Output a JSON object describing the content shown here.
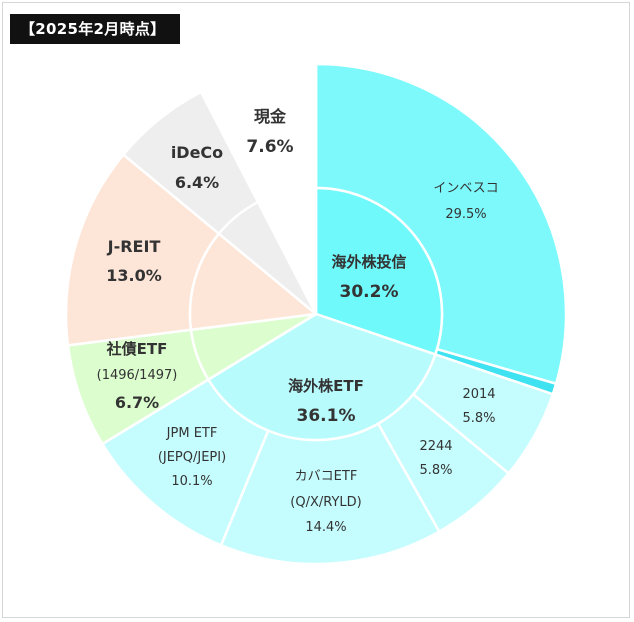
{
  "title": "【2025年2月時点】",
  "colors": {
    "overseas_fund": "#7df9fc",
    "overseas_fund_inner": "#6ff9fb",
    "overseas_etf": "#c5fcfd",
    "overseas_etf_inner": "#b8fbfd",
    "thin_sliver": "#3ee2f0",
    "bond_etf": "#dcfdce",
    "jreit": "#fde6d8",
    "ideco": "#eeeeee",
    "cash": "#ffffff",
    "separator": "#ffffff"
  },
  "chart_data": {
    "type": "pie",
    "variant": "nested-donut",
    "title": "【2025年2月時点】",
    "inner_ring": [
      {
        "label": "海外株投信",
        "value": 30.2,
        "value_text": "30.2%",
        "color": "#6ff9fb"
      },
      {
        "label": "海外株ETF",
        "value": 36.1,
        "value_text": "36.1%",
        "color": "#b8fbfd"
      }
    ],
    "slices": [
      {
        "key": "invesco",
        "label": "インベスコ",
        "value": 29.5,
        "value_text": "29.5%",
        "color": "#7df9fc",
        "group": "海外株投信"
      },
      {
        "key": "sliver",
        "label": "",
        "value": 0.7,
        "value_text": "",
        "color": "#3ee2f0",
        "group": "海外株投信"
      },
      {
        "key": "etf2014",
        "label": "2014",
        "value": 5.8,
        "value_text": "5.8%",
        "color": "#c5fcfd",
        "group": "海外株ETF"
      },
      {
        "key": "etf2244",
        "label": "2244",
        "value": 5.8,
        "value_text": "5.8%",
        "color": "#c5fcfd",
        "group": "海外株ETF"
      },
      {
        "key": "covered_call",
        "label": "カバコETF",
        "sublabel": "(Q/X/RYLD)",
        "value": 14.4,
        "value_text": "14.4%",
        "color": "#c5fcfd",
        "group": "海外株ETF"
      },
      {
        "key": "jpm",
        "label": "JPM ETF",
        "sublabel": "(JEPQ/JEPI)",
        "value": 10.1,
        "value_text": "10.1%",
        "color": "#c5fcfd",
        "group": "海外株ETF"
      },
      {
        "key": "bond_etf",
        "label": "社債ETF",
        "sublabel": "(1496/1497)",
        "value": 6.7,
        "value_text": "6.7%",
        "color": "#dcfdce",
        "group": "社債ETF"
      },
      {
        "key": "jreit",
        "label": "J-REIT",
        "value": 13.0,
        "value_text": "13.0%",
        "color": "#fde6d8",
        "group": "J-REIT"
      },
      {
        "key": "ideco",
        "label": "iDeCo",
        "value": 6.4,
        "value_text": "6.4%",
        "color": "#eeeeee",
        "group": "iDeCo"
      },
      {
        "key": "cash",
        "label": "現金",
        "value": 7.6,
        "value_text": "7.6%",
        "color": "#ffffff",
        "group": "現金"
      }
    ]
  }
}
